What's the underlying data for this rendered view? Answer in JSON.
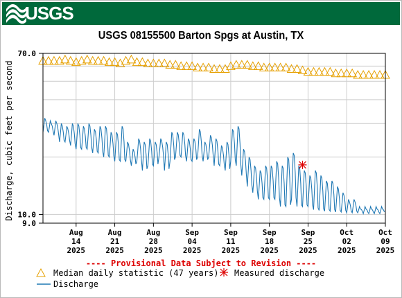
{
  "header": {
    "logo_text": "USGS",
    "logo_icon": "usgs-wave-logo-icon"
  },
  "colors": {
    "banner": "#00693b",
    "median": "#e6a000",
    "discharge": "#1f78b4",
    "measured": "#dd0000",
    "grid": "#cccccc"
  },
  "notice": "---- Provisional Data Subject to Revision ----",
  "legend": {
    "median": "Median daily statistic (47 years)",
    "measured": "Measured discharge",
    "discharge": "Discharge"
  },
  "chart_data": {
    "type": "line",
    "title": "USGS 08155500 Barton Spgs at Austin, TX",
    "ylabel": "Discharge, cubic feet per second",
    "xlabel": "",
    "y_scale": "log",
    "ylim": [
      9.0,
      70.0
    ],
    "y_ticks": [
      {
        "value": 70.0,
        "label": "70.0"
      },
      {
        "value": 10.0,
        "label": "10.0"
      },
      {
        "value": 9.0,
        "label": "9.0"
      }
    ],
    "x_range": [
      "2025-08-08",
      "2025-10-09"
    ],
    "x_ticks": [
      {
        "date": "2025-08-14",
        "month": "Aug",
        "day": "14",
        "year": "2025"
      },
      {
        "date": "2025-08-21",
        "month": "Aug",
        "day": "21",
        "year": "2025"
      },
      {
        "date": "2025-08-28",
        "month": "Aug",
        "day": "28",
        "year": "2025"
      },
      {
        "date": "2025-09-04",
        "month": "Sep",
        "day": "04",
        "year": "2025"
      },
      {
        "date": "2025-09-11",
        "month": "Sep",
        "day": "11",
        "year": "2025"
      },
      {
        "date": "2025-09-18",
        "month": "Sep",
        "day": "18",
        "year": "2025"
      },
      {
        "date": "2025-09-25",
        "month": "Sep",
        "day": "25",
        "year": "2025"
      },
      {
        "date": "2025-10-02",
        "month": "Oct",
        "day": "02",
        "year": "2025"
      },
      {
        "date": "2025-10-09",
        "month": "Oct",
        "day": "09",
        "year": "2025"
      }
    ],
    "grid": true,
    "legend_position": "bottom",
    "series": [
      {
        "name": "Median daily statistic (47 years)",
        "marker": "triangle",
        "x": [
          "2025-08-08",
          "2025-08-09",
          "2025-08-10",
          "2025-08-11",
          "2025-08-12",
          "2025-08-13",
          "2025-08-14",
          "2025-08-15",
          "2025-08-16",
          "2025-08-17",
          "2025-08-18",
          "2025-08-19",
          "2025-08-20",
          "2025-08-21",
          "2025-08-22",
          "2025-08-23",
          "2025-08-24",
          "2025-08-25",
          "2025-08-26",
          "2025-08-27",
          "2025-08-28",
          "2025-08-29",
          "2025-08-30",
          "2025-08-31",
          "2025-09-01",
          "2025-09-02",
          "2025-09-03",
          "2025-09-04",
          "2025-09-05",
          "2025-09-06",
          "2025-09-07",
          "2025-09-08",
          "2025-09-09",
          "2025-09-10",
          "2025-09-11",
          "2025-09-12",
          "2025-09-13",
          "2025-09-14",
          "2025-09-15",
          "2025-09-16",
          "2025-09-17",
          "2025-09-18",
          "2025-09-19",
          "2025-09-20",
          "2025-09-21",
          "2025-09-22",
          "2025-09-23",
          "2025-09-24",
          "2025-09-25",
          "2025-09-26",
          "2025-09-27",
          "2025-09-28",
          "2025-09-29",
          "2025-09-30",
          "2025-10-01",
          "2025-10-02",
          "2025-10-03",
          "2025-10-04",
          "2025-10-05",
          "2025-10-06",
          "2025-10-07",
          "2025-10-08",
          "2025-10-09"
        ],
        "values": [
          64,
          64,
          64,
          64,
          65,
          64,
          63,
          64,
          65,
          64,
          64,
          64,
          63,
          63,
          62,
          64,
          65,
          63,
          63,
          62,
          62,
          62,
          62,
          61,
          61,
          60,
          60,
          60,
          59,
          59,
          59,
          58,
          58,
          58,
          60,
          61,
          61,
          61,
          60,
          60,
          59,
          59,
          59,
          59,
          59,
          58,
          58,
          57,
          56,
          56,
          56,
          56,
          56,
          55,
          55,
          55,
          55,
          54,
          54,
          54,
          54,
          54,
          54
        ]
      },
      {
        "name": "Discharge",
        "x": [
          "2025-08-08",
          "2025-08-09",
          "2025-08-10",
          "2025-08-11",
          "2025-08-12",
          "2025-08-13",
          "2025-08-14",
          "2025-08-15",
          "2025-08-16",
          "2025-08-17",
          "2025-08-18",
          "2025-08-19",
          "2025-08-20",
          "2025-08-21",
          "2025-08-22",
          "2025-08-23",
          "2025-08-24",
          "2025-08-25",
          "2025-08-26",
          "2025-08-27",
          "2025-08-28",
          "2025-08-29",
          "2025-08-30",
          "2025-08-31",
          "2025-09-01",
          "2025-09-02",
          "2025-09-03",
          "2025-09-04",
          "2025-09-05",
          "2025-09-06",
          "2025-09-07",
          "2025-09-08",
          "2025-09-09",
          "2025-09-10",
          "2025-09-11",
          "2025-09-12",
          "2025-09-13",
          "2025-09-14",
          "2025-09-15",
          "2025-09-16",
          "2025-09-17",
          "2025-09-18",
          "2025-09-19",
          "2025-09-20",
          "2025-09-21",
          "2025-09-22",
          "2025-09-23",
          "2025-09-24",
          "2025-09-25",
          "2025-09-26",
          "2025-09-27",
          "2025-09-28",
          "2025-09-29",
          "2025-09-30",
          "2025-10-01",
          "2025-10-02",
          "2025-10-03",
          "2025-10-04",
          "2025-10-05",
          "2025-10-06",
          "2025-10-07",
          "2025-10-08"
        ],
        "high": [
          32,
          31,
          31,
          30,
          29,
          30,
          30,
          29,
          30,
          28,
          29,
          29,
          27,
          27,
          29,
          24,
          22,
          25,
          24,
          25,
          24,
          25,
          24,
          27,
          27,
          27,
          25,
          25,
          28,
          24,
          26,
          25,
          23,
          24,
          28,
          29,
          22,
          20,
          18,
          17,
          18,
          18,
          19,
          18,
          20,
          21,
          18,
          17,
          16,
          17,
          16,
          15,
          15,
          14,
          13,
          12,
          12,
          11,
          11,
          11,
          11,
          11
        ],
        "low": [
          27,
          27,
          26,
          24,
          24,
          23,
          22,
          22,
          22,
          21,
          21,
          20,
          20,
          19,
          19,
          19,
          18,
          19,
          17,
          18,
          18,
          20,
          17,
          19,
          20,
          20,
          19,
          19,
          20,
          19,
          20,
          18,
          18,
          17,
          19,
          18,
          16,
          14,
          13,
          12,
          12,
          12,
          12,
          11,
          11,
          12,
          11,
          11,
          11,
          10.6,
          10.5,
          10.4,
          10.4,
          10.3,
          10.3,
          10.2,
          10.2,
          10.2,
          10.1,
          10.1,
          10.1,
          10.1
        ]
      },
      {
        "name": "Measured discharge",
        "marker": "asterisk",
        "points": [
          {
            "x": "2025-09-24",
            "y": 18.2
          }
        ]
      }
    ]
  }
}
